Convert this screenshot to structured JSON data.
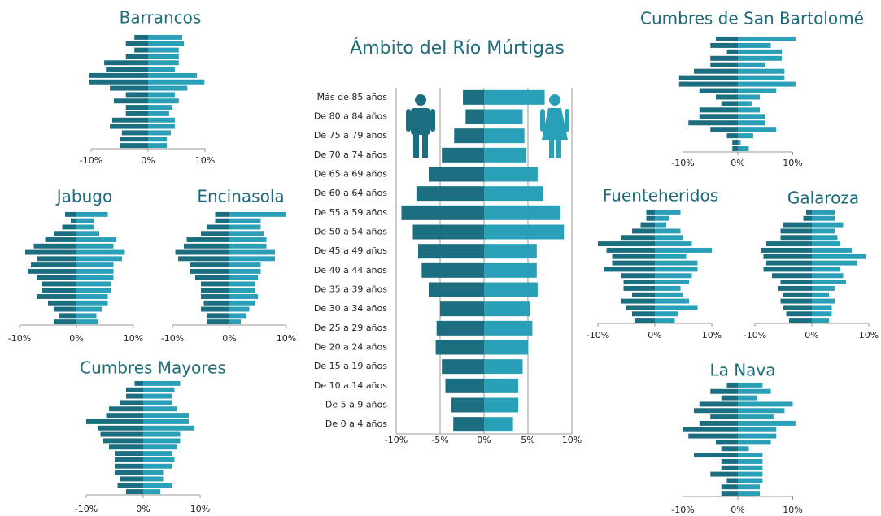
{
  "chart_data": [
    {
      "type": "pyramid",
      "title": "Ámbito del Río Múrtigas",
      "categories": [
        "Más de 85 años",
        "De 80 a 84 años",
        "De 75 a 79 años",
        "De 70 a 74 años",
        "De 65 a 69 años",
        "De 60 a 64 años",
        "De 55 a 59 años",
        "De 50 a 54 años",
        "De 45 a 49 años",
        "De 40 a 44 años",
        "De 35 a 39 años",
        "De 30 a 34 años",
        "De 25 a 29 años",
        "De 20 a 24 años",
        "De 15 a 19 años",
        "De 10 a 14 años",
        "De 5 a 9 años",
        "De 0 a 4 años"
      ],
      "series": [
        {
          "color": "#1b6d80",
          "values": [
            -2.4,
            -2.1,
            -3.4,
            -4.8,
            -6.3,
            -7.7,
            -9.4,
            -8.1,
            -7.5,
            -7.1,
            -6.3,
            -5.0,
            -5.4,
            -5.5,
            -4.8,
            -4.4,
            -3.7,
            -3.5
          ]
        },
        {
          "color": "#2aa0b8",
          "values": [
            6.9,
            4.4,
            4.6,
            4.8,
            6.1,
            6.7,
            8.7,
            9.1,
            6.0,
            6.0,
            6.1,
            5.2,
            5.5,
            5.0,
            4.4,
            3.9,
            3.9,
            3.3
          ]
        }
      ],
      "xlim": [
        -10,
        10
      ],
      "xticks": [
        {
          "value": -10,
          "label": "-10%"
        },
        {
          "value": -5,
          "label": "-5%"
        },
        {
          "value": 0,
          "label": "0%"
        },
        {
          "value": 5,
          "label": "5%"
        },
        {
          "value": 10,
          "label": "10%"
        }
      ],
      "grid": true
    },
    {
      "type": "pyramid",
      "title": "Barrancos",
      "series": [
        {
          "color": "#1b6d80",
          "values": [
            -2.4,
            -3.9,
            -2.4,
            -3.9,
            -7.7,
            -7.4,
            -10.3,
            -10.3,
            -6.7,
            -3.9,
            -6.0,
            -3.9,
            -3.9,
            -6.3,
            -6.7,
            -4.6,
            -4.9,
            -4.9
          ]
        },
        {
          "color": "#2aa0b8",
          "values": [
            6.0,
            6.3,
            5.4,
            5.4,
            5.4,
            4.7,
            8.6,
            9.9,
            6.9,
            4.7,
            5.4,
            4.3,
            3.7,
            4.7,
            4.7,
            4.0,
            3.3,
            3.3
          ]
        }
      ],
      "xlim": [
        -10,
        10
      ],
      "xticks": [
        {
          "value": -10,
          "label": "-10%"
        },
        {
          "value": 0,
          "label": "0%"
        },
        {
          "value": 10,
          "label": "10%"
        }
      ]
    },
    {
      "type": "pyramid",
      "title": "Cumbres de San Bartolomé",
      "series": [
        {
          "color": "#1b6d80",
          "values": [
            -4,
            -5,
            -2,
            -5,
            -5,
            -8,
            -10.7,
            -10.7,
            -7,
            -4,
            -3,
            -7,
            -7,
            -9,
            -5,
            -2,
            -1,
            -1
          ]
        },
        {
          "color": "#2aa0b8",
          "values": [
            10.5,
            6,
            8,
            8,
            5,
            8.5,
            8.5,
            10.5,
            7,
            4,
            2.5,
            4,
            5,
            5,
            7,
            2.8,
            0.5,
            2
          ]
        }
      ],
      "xlim": [
        -10,
        10
      ],
      "xticks": [
        {
          "value": -10,
          "label": "-10%"
        },
        {
          "value": 0,
          "label": "0%"
        },
        {
          "value": 10,
          "label": "10%"
        }
      ]
    },
    {
      "type": "pyramid",
      "title": "Jabugo",
      "series": [
        {
          "color": "#1b6d80",
          "values": [
            -2,
            -1,
            -2.5,
            -4,
            -5.5,
            -7.5,
            -9,
            -7,
            -8,
            -8.5,
            -7,
            -6,
            -6,
            -7,
            -5,
            -4,
            -3,
            -4
          ]
        },
        {
          "color": "#2aa0b8",
          "values": [
            5.5,
            3,
            3,
            4,
            7,
            6.5,
            8.5,
            8,
            6.5,
            6.5,
            6.5,
            6,
            6,
            5.5,
            5.5,
            4.5,
            3.5,
            3.8
          ]
        }
      ],
      "xlim": [
        -10,
        10
      ],
      "xticks": [
        {
          "value": -10,
          "label": "-10%"
        },
        {
          "value": 0,
          "label": "0%"
        },
        {
          "value": 10,
          "label": "10%"
        }
      ]
    },
    {
      "type": "pyramid",
      "title": "Encinasola",
      "series": [
        {
          "color": "#1b6d80",
          "values": [
            -2.5,
            -2.5,
            -4,
            -5,
            -7.5,
            -8,
            -9.5,
            -9,
            -7,
            -7,
            -6,
            -5,
            -5,
            -5,
            -4.5,
            -5,
            -4,
            -4
          ]
        },
        {
          "color": "#2aa0b8",
          "values": [
            10,
            5.5,
            5.5,
            6,
            6.5,
            6.5,
            8,
            8,
            5.5,
            5.5,
            5,
            4.5,
            4.5,
            5,
            4.5,
            3.5,
            3,
            2
          ]
        }
      ],
      "xlim": [
        -10,
        10
      ],
      "xticks": [
        {
          "value": -10,
          "label": "-10%"
        },
        {
          "value": 0,
          "label": "0%"
        },
        {
          "value": 10,
          "label": "10%"
        }
      ]
    },
    {
      "type": "pyramid",
      "title": "Cumbres Mayores",
      "series": [
        {
          "color": "#1b6d80",
          "values": [
            -1.5,
            -3,
            -3,
            -4,
            -6,
            -6.5,
            -10,
            -8,
            -7.5,
            -7,
            -6,
            -5,
            -5,
            -5,
            -5,
            -4,
            -4.5,
            -3
          ]
        },
        {
          "color": "#2aa0b8",
          "values": [
            6.5,
            5.5,
            5,
            5,
            6,
            8,
            8,
            9,
            6.5,
            6.5,
            6,
            5,
            5.5,
            5,
            3.5,
            3.5,
            5,
            3
          ]
        }
      ],
      "xlim": [
        -10,
        10
      ],
      "xticks": [
        {
          "value": -10,
          "label": "-10%"
        },
        {
          "value": 0,
          "label": "0%"
        },
        {
          "value": 10,
          "label": "10%"
        }
      ]
    },
    {
      "type": "pyramid",
      "title": "Fuenteheridos",
      "series": [
        {
          "color": "#1b6d80",
          "values": [
            -1.5,
            -1.5,
            -2.5,
            -4,
            -6,
            -10,
            -8.5,
            -7.5,
            -7.5,
            -9,
            -6,
            -5.5,
            -5.5,
            -4,
            -6,
            -5,
            -4,
            -3.5
          ]
        },
        {
          "color": "#2aa0b8",
          "values": [
            4.5,
            2.5,
            2,
            4.5,
            5,
            6.5,
            10,
            5.5,
            7.5,
            7.5,
            6.5,
            6,
            4.5,
            5,
            6,
            7.5,
            4,
            3.5
          ]
        }
      ],
      "xlim": [
        -10,
        10
      ],
      "xticks": [
        {
          "value": -10,
          "label": "-10%"
        },
        {
          "value": 0,
          "label": "0%"
        },
        {
          "value": 10,
          "label": "10%"
        }
      ]
    },
    {
      "type": "pyramid",
      "title": "Galaroza",
      "series": [
        {
          "color": "#1b6d80",
          "values": [
            -1,
            -1.5,
            -5,
            -5.5,
            -5.5,
            -8,
            -9,
            -8.5,
            -8,
            -8.5,
            -7,
            -5.5,
            -6,
            -5,
            -5.5,
            -5,
            -4.5,
            -4
          ]
        },
        {
          "color": "#2aa0b8",
          "values": [
            4,
            4,
            5.5,
            4,
            4.5,
            5,
            7,
            9.5,
            8,
            5,
            5.5,
            6,
            4,
            3,
            4,
            3.5,
            3.5,
            3
          ]
        }
      ],
      "xlim": [
        -10,
        10
      ],
      "xticks": [
        {
          "value": -10,
          "label": "-10%"
        },
        {
          "value": 0,
          "label": "0%"
        },
        {
          "value": 10,
          "label": "10%"
        }
      ]
    },
    {
      "type": "pyramid",
      "title": "La Nava",
      "series": [
        {
          "color": "#1b6d80",
          "values": [
            -2,
            -5,
            -3,
            -7,
            -8,
            -5,
            -7,
            -10,
            -9,
            -4,
            -3,
            -8,
            -3,
            -3,
            -5,
            -2,
            -3,
            -3
          ]
        },
        {
          "color": "#2aa0b8",
          "values": [
            4.5,
            6,
            3.5,
            10,
            8.5,
            6.5,
            10.5,
            7,
            7,
            6,
            2,
            4.5,
            4.5,
            4.5,
            4.5,
            4.5,
            4,
            4
          ]
        }
      ],
      "xlim": [
        -10,
        10
      ],
      "xticks": [
        {
          "value": -10,
          "label": "-10%"
        },
        {
          "value": 0,
          "label": "0%"
        },
        {
          "value": 10,
          "label": "10%"
        }
      ]
    }
  ]
}
